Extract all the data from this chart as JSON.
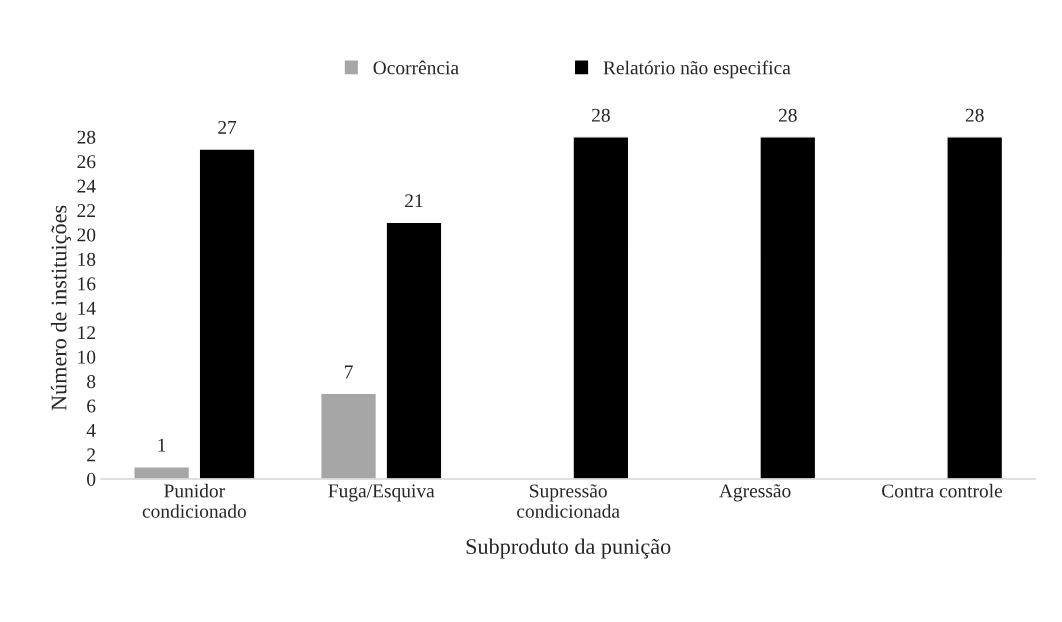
{
  "chart_data": {
    "type": "bar",
    "xlabel": "Subproduto da punição",
    "ylabel": "Número de instituições",
    "categories": [
      "Punidor\ncondicionado",
      "Fuga/Esquiva",
      "Supressão\ncondicionada",
      "Agressão",
      "Contra controle"
    ],
    "series": [
      {
        "name": "Ocorrência",
        "color": "#a6a6a6",
        "values": [
          1,
          7,
          null,
          null,
          null
        ],
        "value_labels": [
          "1",
          "7",
          null,
          null,
          null
        ]
      },
      {
        "name": "Relatório não especifica",
        "color": "#000000",
        "values": [
          27,
          21,
          28,
          28,
          28
        ],
        "value_labels": [
          "27",
          "21",
          "28",
          "28",
          "28"
        ]
      }
    ],
    "ylim": [
      0,
      28
    ],
    "yticks": [
      0,
      2,
      4,
      6,
      8,
      10,
      12,
      14,
      16,
      18,
      20,
      22,
      24,
      26,
      28
    ],
    "grid": false,
    "legend": "top"
  }
}
